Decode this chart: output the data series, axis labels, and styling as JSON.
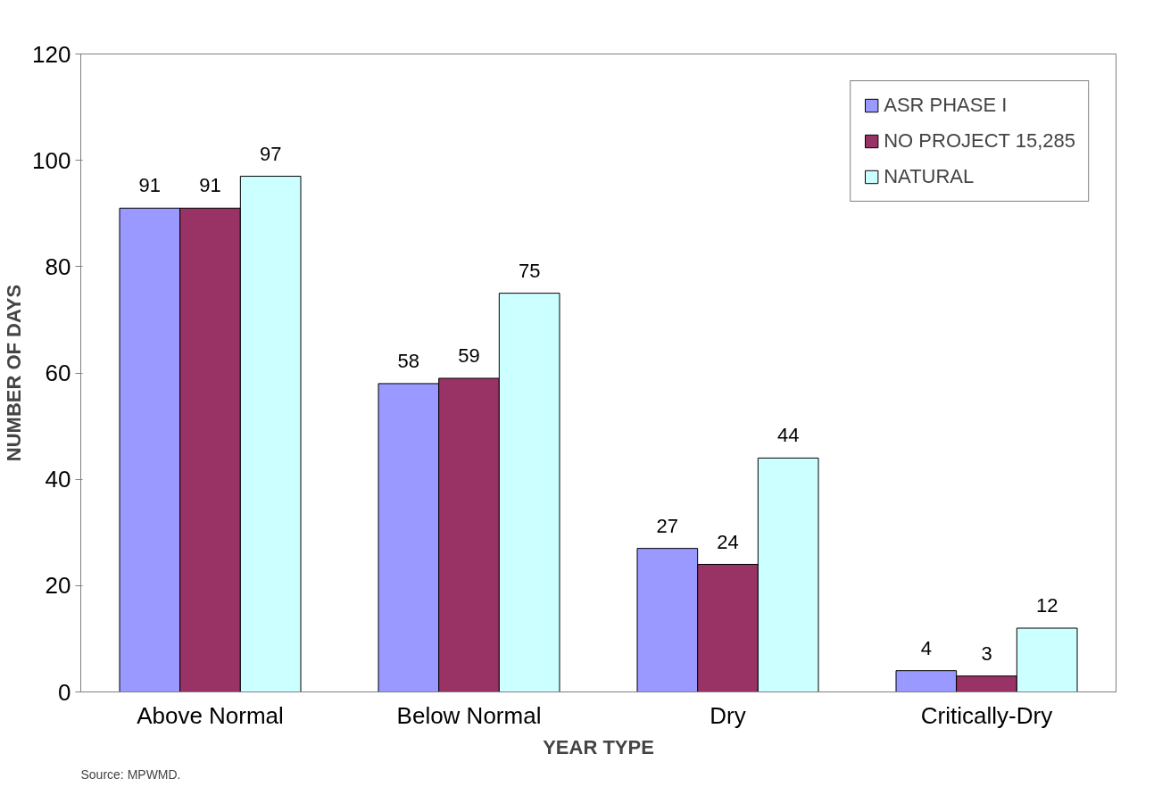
{
  "chart_data": {
    "type": "bar",
    "xlabel": "YEAR TYPE",
    "ylabel": "NUMBER OF DAYS",
    "categories": [
      "Above Normal",
      "Below Normal",
      "Dry",
      "Critically-Dry"
    ],
    "series": [
      {
        "name": "ASR PHASE I",
        "color": "#9999ff",
        "values": [
          91,
          58,
          27,
          4
        ]
      },
      {
        "name": "NO PROJECT 15,285",
        "color": "#993366",
        "values": [
          91,
          59,
          24,
          3
        ]
      },
      {
        "name": "NATURAL",
        "color": "#ccffff",
        "values": [
          97,
          75,
          44,
          12
        ]
      }
    ],
    "ylim": [
      0,
      120
    ],
    "yticks": [
      0,
      20,
      40,
      60,
      80,
      100,
      120
    ],
    "grid": false,
    "legend": "top right",
    "data_labels": true,
    "annotations": [
      "Source: MPWMD."
    ]
  }
}
